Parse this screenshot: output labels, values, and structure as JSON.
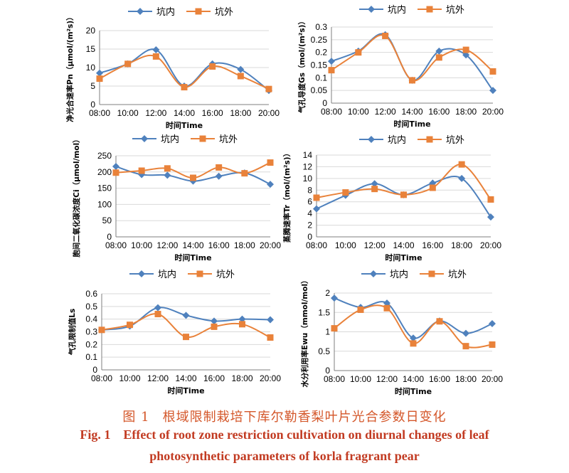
{
  "legend": {
    "inner": "坑内",
    "outer": "坑外"
  },
  "colors": {
    "inner": "#4f81bd",
    "outer": "#e9823a",
    "axis": "#7f7f7f",
    "grid": "#d9d9d9"
  },
  "caption": {
    "zh_num": "图 1",
    "zh_text": "根域限制栽培下库尔勒香梨叶片光合参数日变化",
    "en_num": "Fig. 1",
    "en_line1": "Effect of root zone restriction cultivation on diurnal changes of leaf",
    "en_line2": "photosynthetic parameters of korla fragrant pear"
  },
  "chart_data": [
    {
      "type": "line",
      "title": "",
      "xlabel": "时间Time",
      "ylabel": "净光合速率Pn（μmol/(m²s)）",
      "x": [
        "08:00",
        "10:00",
        "12:00",
        "14:00",
        "16:00",
        "18:00",
        "20:00"
      ],
      "ylim": [
        0,
        20
      ],
      "yticks": [
        "0",
        "5",
        "10",
        "15",
        "20"
      ],
      "series": [
        {
          "name": "坑内",
          "values": [
            8.5,
            11.0,
            14.8,
            5.0,
            11.0,
            9.5,
            3.8
          ]
        },
        {
          "name": "坑外",
          "values": [
            7.0,
            11.0,
            13.0,
            4.7,
            10.3,
            7.7,
            4.2
          ]
        }
      ]
    },
    {
      "type": "line",
      "title": "",
      "xlabel": "时间Time",
      "ylabel": "气孔导度Gs（mol/(m²s)）",
      "x": [
        "08:00",
        "10:00",
        "12:00",
        "14:00",
        "16:00",
        "18:00",
        "20:00"
      ],
      "ylim": [
        0,
        0.3
      ],
      "yticks": [
        "0",
        "0.05",
        "0.1",
        "0.15",
        "0.2",
        "0.25",
        "0.3"
      ],
      "series": [
        {
          "name": "坑内",
          "values": [
            0.165,
            0.205,
            0.27,
            0.09,
            0.205,
            0.19,
            0.05
          ]
        },
        {
          "name": "坑外",
          "values": [
            0.13,
            0.2,
            0.265,
            0.09,
            0.18,
            0.21,
            0.125
          ]
        }
      ]
    },
    {
      "type": "line",
      "title": "",
      "xlabel": "时间Time",
      "ylabel": "胞间二氧化碳浓度Ci（μmol/mol）",
      "x": [
        "08:00",
        "10:00",
        "12:00",
        "14:00",
        "16:00",
        "18:00",
        "20:00"
      ],
      "ylim": [
        0,
        250
      ],
      "yticks": [
        "0",
        "50",
        "100",
        "150",
        "200",
        "250"
      ],
      "series": [
        {
          "name": "坑内",
          "values": [
            217,
            192,
            190,
            172,
            187,
            197,
            162
          ]
        },
        {
          "name": "坑外",
          "values": [
            198,
            204,
            211,
            182,
            214,
            196,
            229
          ]
        }
      ]
    },
    {
      "type": "line",
      "title": "",
      "xlabel": "时间Time",
      "ylabel": "蒸腾速率Tr（mol/(m²s)）",
      "x": [
        "08:00",
        "10:00",
        "12:00",
        "14:00",
        "16:00",
        "18:00",
        "20:00"
      ],
      "ylim": [
        0,
        14
      ],
      "yticks": [
        "0",
        "2",
        "4",
        "6",
        "8",
        "10",
        "12",
        "14"
      ],
      "series": [
        {
          "name": "坑内",
          "values": [
            4.8,
            7.1,
            9.1,
            7.2,
            9.2,
            10.0,
            3.4
          ]
        },
        {
          "name": "坑外",
          "values": [
            6.7,
            7.6,
            8.2,
            7.2,
            8.4,
            12.4,
            6.4
          ]
        }
      ]
    },
    {
      "type": "line",
      "title": "",
      "xlabel": "时间Time",
      "ylabel": "气孔限制值Ls",
      "x": [
        "08:00",
        "10:00",
        "12:00",
        "14:00",
        "16:00",
        "18:00",
        "20:00"
      ],
      "ylim": [
        0,
        0.6
      ],
      "yticks": [
        "0",
        "0.1",
        "0.2",
        "0.3",
        "0.4",
        "0.5",
        "0.6"
      ],
      "series": [
        {
          "name": "坑内",
          "values": [
            0.315,
            0.345,
            0.49,
            0.43,
            0.385,
            0.4,
            0.395
          ]
        },
        {
          "name": "坑外",
          "values": [
            0.315,
            0.355,
            0.44,
            0.26,
            0.34,
            0.36,
            0.255
          ]
        }
      ]
    },
    {
      "type": "line",
      "title": "",
      "xlabel": "时间Time",
      "ylabel": "水分利用率Ewu（mmol/mol）",
      "x": [
        "08:00",
        "10:00",
        "12:00",
        "14:00",
        "16:00",
        "18:00",
        "20:00"
      ],
      "ylim": [
        0,
        2
      ],
      "yticks": [
        "0",
        "0.5",
        "1",
        "1.5",
        "2"
      ],
      "series": [
        {
          "name": "坑内",
          "values": [
            1.87,
            1.63,
            1.74,
            0.84,
            1.28,
            0.96,
            1.21
          ]
        },
        {
          "name": "坑外",
          "values": [
            1.09,
            1.57,
            1.61,
            0.7,
            1.27,
            0.63,
            0.67
          ]
        }
      ]
    }
  ]
}
